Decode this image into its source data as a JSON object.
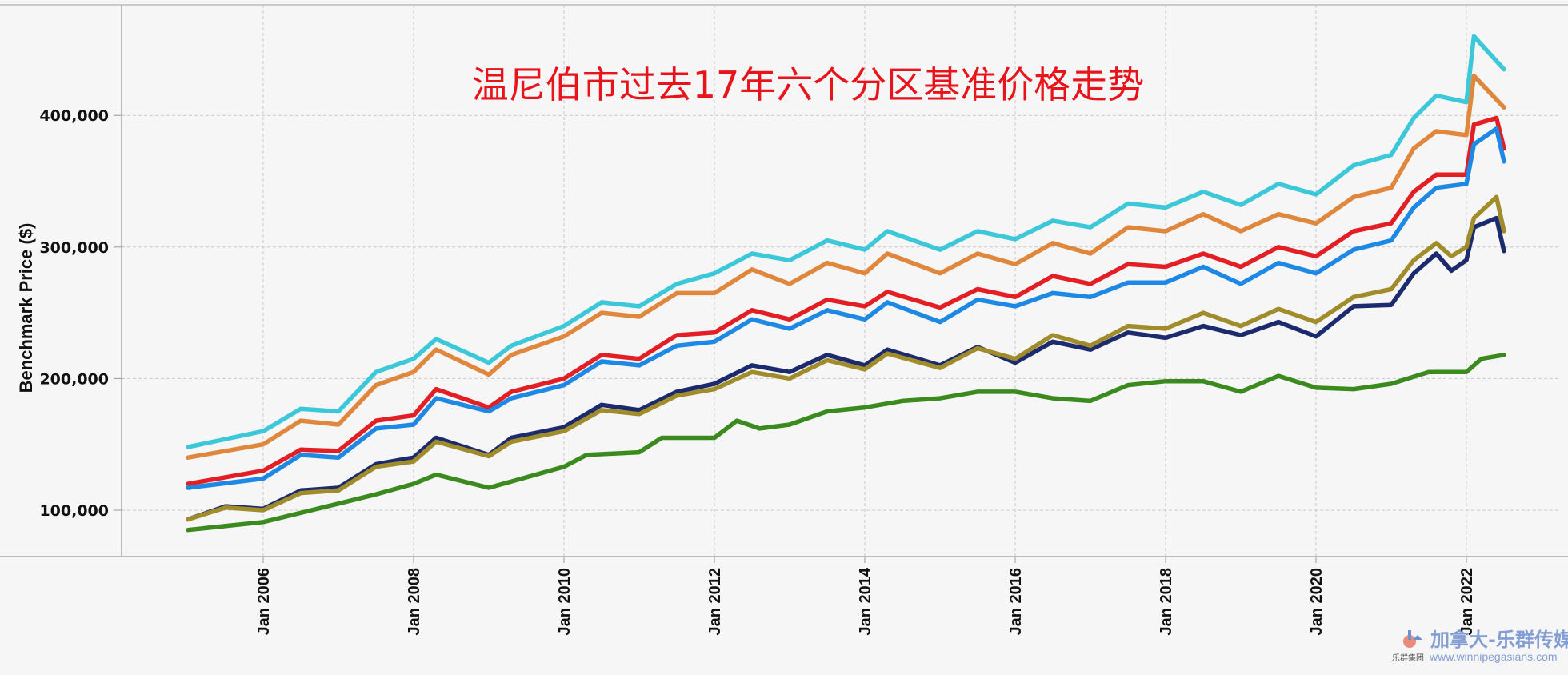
{
  "chart_data": {
    "type": "line",
    "title": "温尼伯市过去17年六个分区基准价格走势",
    "xlabel": "",
    "ylabel": "Benchmark Price ($)",
    "ylim": [
      68000,
      480000
    ],
    "xlim": [
      2003.8,
      2023.5
    ],
    "grid": true,
    "y_ticks": [
      {
        "v": 100000,
        "label": "100,000"
      },
      {
        "v": 200000,
        "label": "200,000"
      },
      {
        "v": 300000,
        "label": "300,000"
      },
      {
        "v": 400000,
        "label": "400,000"
      }
    ],
    "x_ticks": [
      {
        "v": 2006,
        "label": "Jan 2006"
      },
      {
        "v": 2008,
        "label": "Jan 2008"
      },
      {
        "v": 2010,
        "label": "Jan 2010"
      },
      {
        "v": 2012,
        "label": "Jan 2012"
      },
      {
        "v": 2014,
        "label": "Jan 2014"
      },
      {
        "v": 2016,
        "label": "Jan 2016"
      },
      {
        "v": 2018,
        "label": "Jan 2018"
      },
      {
        "v": 2020,
        "label": "Jan 2020"
      },
      {
        "v": 2022,
        "label": "Jan 2022"
      }
    ],
    "series": [
      {
        "name": "series-cyan",
        "color": "#3cc8d8",
        "x": [
          2005,
          2006,
          2006.5,
          2007,
          2007.5,
          2008,
          2008.3,
          2009,
          2009.3,
          2010,
          2010.5,
          2011,
          2011.5,
          2012,
          2012.5,
          2013,
          2013.5,
          2014,
          2014.3,
          2015,
          2015.5,
          2016,
          2016.5,
          2017,
          2017.5,
          2018,
          2018.5,
          2019,
          2019.5,
          2020,
          2020.5,
          2021,
          2021.3,
          2021.6,
          2022,
          2022.1,
          2022.5
        ],
        "values": [
          148000,
          160000,
          177000,
          175000,
          205000,
          215000,
          230000,
          212000,
          225000,
          240000,
          258000,
          255000,
          272000,
          280000,
          295000,
          290000,
          305000,
          298000,
          312000,
          298000,
          312000,
          306000,
          320000,
          315000,
          333000,
          330000,
          342000,
          332000,
          348000,
          340000,
          362000,
          370000,
          398000,
          415000,
          410000,
          460000,
          435000
        ]
      },
      {
        "name": "series-orange",
        "color": "#e0873e",
        "x": [
          2005,
          2006,
          2006.5,
          2007,
          2007.5,
          2008,
          2008.3,
          2009,
          2009.3,
          2010,
          2010.5,
          2011,
          2011.5,
          2012,
          2012.5,
          2013,
          2013.5,
          2014,
          2014.3,
          2015,
          2015.5,
          2016,
          2016.5,
          2017,
          2017.5,
          2018,
          2018.5,
          2019,
          2019.5,
          2020,
          2020.5,
          2021,
          2021.3,
          2021.6,
          2022,
          2022.1,
          2022.5
        ],
        "values": [
          140000,
          150000,
          168000,
          165000,
          195000,
          205000,
          222000,
          203000,
          218000,
          232000,
          250000,
          247000,
          265000,
          265000,
          283000,
          272000,
          288000,
          280000,
          295000,
          280000,
          295000,
          287000,
          303000,
          295000,
          315000,
          312000,
          325000,
          312000,
          325000,
          318000,
          338000,
          345000,
          375000,
          388000,
          385000,
          430000,
          406000
        ]
      },
      {
        "name": "series-red",
        "color": "#e31e24",
        "x": [
          2005,
          2006,
          2006.5,
          2007,
          2007.5,
          2008,
          2008.3,
          2009,
          2009.3,
          2010,
          2010.5,
          2011,
          2011.5,
          2012,
          2012.5,
          2013,
          2013.5,
          2014,
          2014.3,
          2015,
          2015.5,
          2016,
          2016.5,
          2017,
          2017.5,
          2018,
          2018.5,
          2019,
          2019.5,
          2020,
          2020.5,
          2021,
          2021.3,
          2021.6,
          2022,
          2022.1,
          2022.4,
          2022.5
        ],
        "values": [
          120000,
          130000,
          146000,
          145000,
          168000,
          172000,
          192000,
          178000,
          190000,
          200000,
          218000,
          215000,
          233000,
          235000,
          252000,
          245000,
          260000,
          255000,
          266000,
          254000,
          268000,
          262000,
          278000,
          272000,
          287000,
          285000,
          295000,
          285000,
          300000,
          293000,
          312000,
          318000,
          342000,
          355000,
          355000,
          393000,
          398000,
          375000
        ]
      },
      {
        "name": "series-blue",
        "color": "#1e88e5",
        "x": [
          2005,
          2006,
          2006.5,
          2007,
          2007.5,
          2008,
          2008.3,
          2009,
          2009.3,
          2010,
          2010.5,
          2011,
          2011.5,
          2012,
          2012.5,
          2013,
          2013.5,
          2014,
          2014.3,
          2015,
          2015.5,
          2016,
          2016.5,
          2017,
          2017.5,
          2018,
          2018.5,
          2019,
          2019.5,
          2020,
          2020.5,
          2021,
          2021.3,
          2021.6,
          2022,
          2022.1,
          2022.4,
          2022.5
        ],
        "values": [
          117000,
          124000,
          142000,
          140000,
          162000,
          165000,
          185000,
          175000,
          185000,
          195000,
          213000,
          210000,
          225000,
          228000,
          245000,
          238000,
          252000,
          245000,
          258000,
          243000,
          260000,
          255000,
          265000,
          262000,
          273000,
          273000,
          285000,
          272000,
          288000,
          280000,
          298000,
          305000,
          330000,
          345000,
          348000,
          378000,
          390000,
          365000
        ]
      },
      {
        "name": "series-navy",
        "color": "#1c2a6e",
        "x": [
          2005,
          2005.5,
          2006,
          2006.5,
          2007,
          2007.5,
          2008,
          2008.3,
          2009,
          2009.3,
          2010,
          2010.5,
          2011,
          2011.5,
          2012,
          2012.5,
          2013,
          2013.5,
          2014,
          2014.3,
          2015,
          2015.5,
          2016,
          2016.5,
          2017,
          2017.5,
          2018,
          2018.5,
          2019,
          2019.5,
          2020,
          2020.5,
          2021,
          2021.3,
          2021.6,
          2021.8,
          2022,
          2022.1,
          2022.4,
          2022.5
        ],
        "values": [
          93000,
          103000,
          101000,
          115000,
          117000,
          135000,
          140000,
          155000,
          142000,
          155000,
          163000,
          180000,
          176000,
          190000,
          196000,
          210000,
          205000,
          218000,
          210000,
          222000,
          210000,
          224000,
          212000,
          228000,
          222000,
          235000,
          231000,
          240000,
          233000,
          243000,
          232000,
          255000,
          256000,
          280000,
          295000,
          282000,
          290000,
          315000,
          322000,
          297000
        ]
      },
      {
        "name": "series-olive",
        "color": "#a08c2a",
        "x": [
          2005,
          2005.5,
          2006,
          2006.5,
          2007,
          2007.5,
          2008,
          2008.3,
          2009,
          2009.3,
          2010,
          2010.5,
          2011,
          2011.5,
          2012,
          2012.5,
          2013,
          2013.5,
          2014,
          2014.3,
          2015,
          2015.5,
          2016,
          2016.5,
          2017,
          2017.5,
          2018,
          2018.5,
          2019,
          2019.5,
          2020,
          2020.5,
          2021,
          2021.3,
          2021.6,
          2021.8,
          2022,
          2022.1,
          2022.4,
          2022.5
        ],
        "values": [
          93000,
          102000,
          100000,
          113000,
          115000,
          133000,
          137000,
          152000,
          141000,
          152000,
          160000,
          176000,
          173000,
          187000,
          192000,
          205000,
          200000,
          214000,
          207000,
          219000,
          208000,
          223000,
          215000,
          233000,
          225000,
          240000,
          238000,
          250000,
          240000,
          253000,
          243000,
          262000,
          268000,
          290000,
          303000,
          293000,
          300000,
          322000,
          338000,
          312000
        ]
      },
      {
        "name": "series-green",
        "color": "#3a8a1e",
        "x": [
          2005,
          2006,
          2006.5,
          2007,
          2007.5,
          2008,
          2008.3,
          2009,
          2009.5,
          2010,
          2010.3,
          2011,
          2011.3,
          2012,
          2012.3,
          2012.6,
          2013,
          2013.5,
          2014,
          2014.5,
          2015,
          2015.5,
          2016,
          2016.5,
          2017,
          2017.5,
          2018,
          2018.5,
          2019,
          2019.5,
          2020,
          2020.5,
          2021,
          2021.5,
          2022,
          2022.2,
          2022.5
        ],
        "values": [
          85000,
          91000,
          98000,
          105000,
          112000,
          120000,
          127000,
          117000,
          125000,
          133000,
          142000,
          144000,
          155000,
          155000,
          168000,
          162000,
          165000,
          175000,
          178000,
          183000,
          185000,
          190000,
          190000,
          185000,
          183000,
          195000,
          198000,
          198000,
          190000,
          202000,
          193000,
          192000,
          196000,
          205000,
          205000,
          215000,
          218000
        ]
      }
    ]
  },
  "watermark": {
    "brand": "加拿大-乐群传媒",
    "url": "www.winnipegasians.com",
    "logo_text": "乐群集团"
  }
}
